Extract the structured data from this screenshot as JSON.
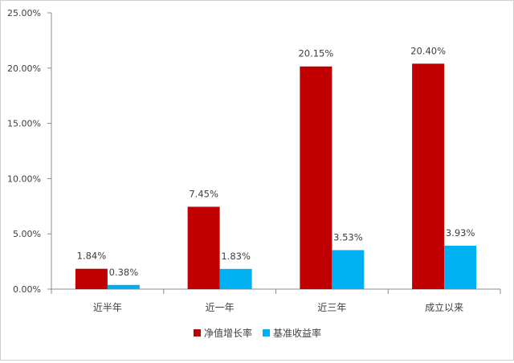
{
  "chart_data": {
    "type": "bar",
    "categories": [
      "近半年",
      "近一年",
      "近三年",
      "成立以来"
    ],
    "series": [
      {
        "name": "净值增长率",
        "values": [
          1.84,
          7.45,
          20.15,
          20.4
        ],
        "labels": [
          "1.84%",
          "7.45%",
          "20.15%",
          "20.40%"
        ],
        "color": "#C00000"
      },
      {
        "name": "基准收益率",
        "values": [
          0.38,
          1.83,
          3.53,
          3.93
        ],
        "labels": [
          "0.38%",
          "1.83%",
          "3.53%",
          "3.93%"
        ],
        "color": "#00B0F0"
      }
    ],
    "y_ticks": [
      "0.00%",
      "5.00%",
      "10.00%",
      "15.00%",
      "20.00%",
      "25.00%"
    ],
    "ylim": [
      0,
      25
    ],
    "grid": false,
    "legend_position": "bottom"
  }
}
